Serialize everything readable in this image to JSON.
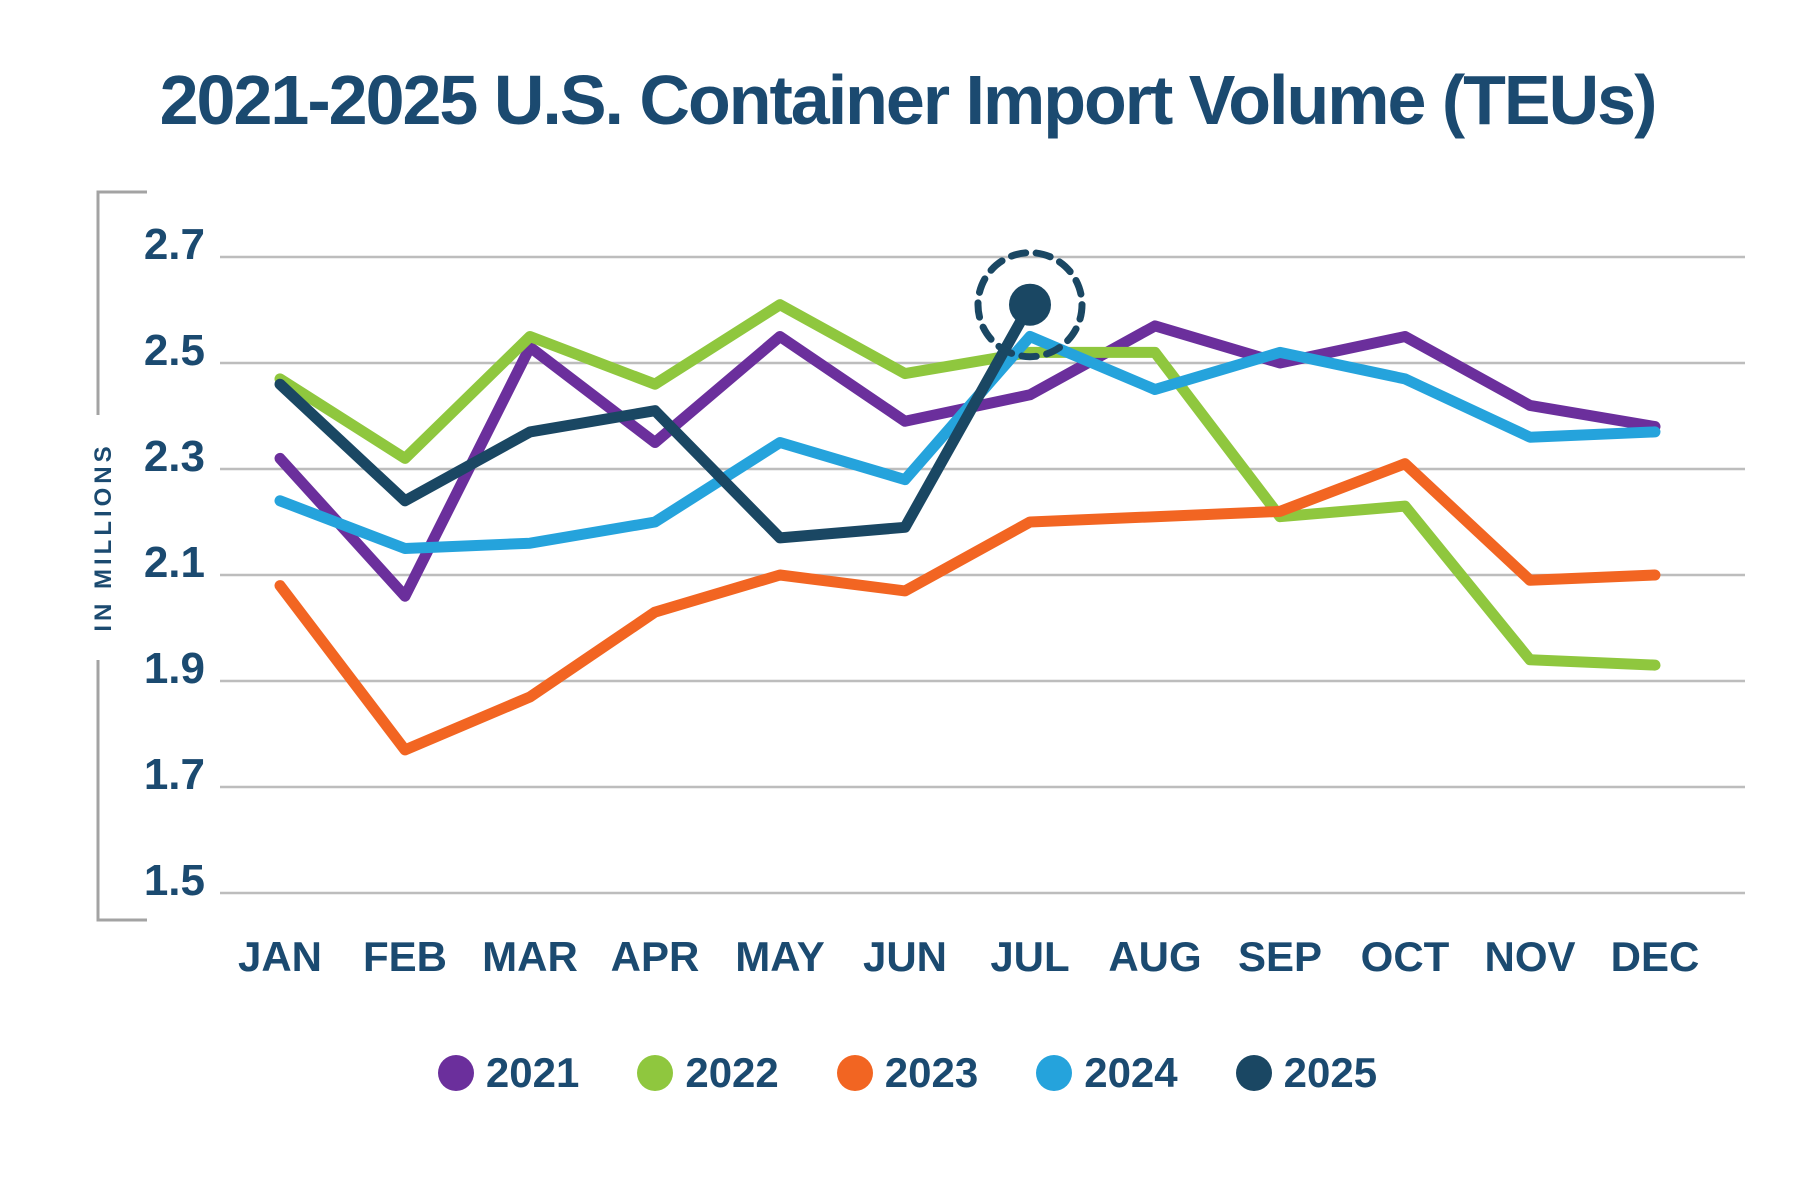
{
  "title": "2021-2025 U.S. Container Import Volume (TEUs)",
  "colors": {
    "text": "#1B4A70",
    "gridline": "#BDBDBD",
    "axis_bracket": "#A3A3A3"
  },
  "chart_data": {
    "type": "line",
    "title": "2021-2025 U.S. Container Import Volume (TEUs)",
    "xlabel": "",
    "ylabel": "IN MILLIONS",
    "categories": [
      "JAN",
      "FEB",
      "MAR",
      "APR",
      "MAY",
      "JUN",
      "JUL",
      "AUG",
      "SEP",
      "OCT",
      "NOV",
      "DEC"
    ],
    "y_ticks": [
      2.7,
      2.5,
      2.3,
      2.1,
      1.9,
      1.7,
      1.5
    ],
    "ylim": [
      1.5,
      2.7
    ],
    "grid": true,
    "legend_position": "bottom",
    "series": [
      {
        "name": "2021",
        "color": "#6B2F9C",
        "values": [
          2.32,
          2.06,
          2.53,
          2.35,
          2.55,
          2.39,
          2.44,
          2.57,
          2.5,
          2.55,
          2.42,
          2.38
        ]
      },
      {
        "name": "2022",
        "color": "#8FC73E",
        "values": [
          2.47,
          2.32,
          2.55,
          2.46,
          2.61,
          2.48,
          2.52,
          2.52,
          2.21,
          2.23,
          1.94,
          1.93
        ]
      },
      {
        "name": "2023",
        "color": "#F26522",
        "values": [
          2.08,
          1.77,
          1.87,
          2.03,
          2.1,
          2.07,
          2.2,
          2.21,
          2.22,
          2.31,
          2.09,
          2.1
        ]
      },
      {
        "name": "2024",
        "color": "#25A3DC",
        "values": [
          2.24,
          2.15,
          2.16,
          2.2,
          2.35,
          2.28,
          2.55,
          2.45,
          2.52,
          2.47,
          2.36,
          2.37
        ]
      },
      {
        "name": "2025",
        "color": "#1A4763",
        "values": [
          2.46,
          2.24,
          2.37,
          2.41,
          2.17,
          2.19,
          2.61
        ]
      }
    ],
    "annotations": [
      {
        "type": "dashed-circle-highlight",
        "series": "2025",
        "month": "JUL",
        "value": 2.61
      }
    ]
  }
}
